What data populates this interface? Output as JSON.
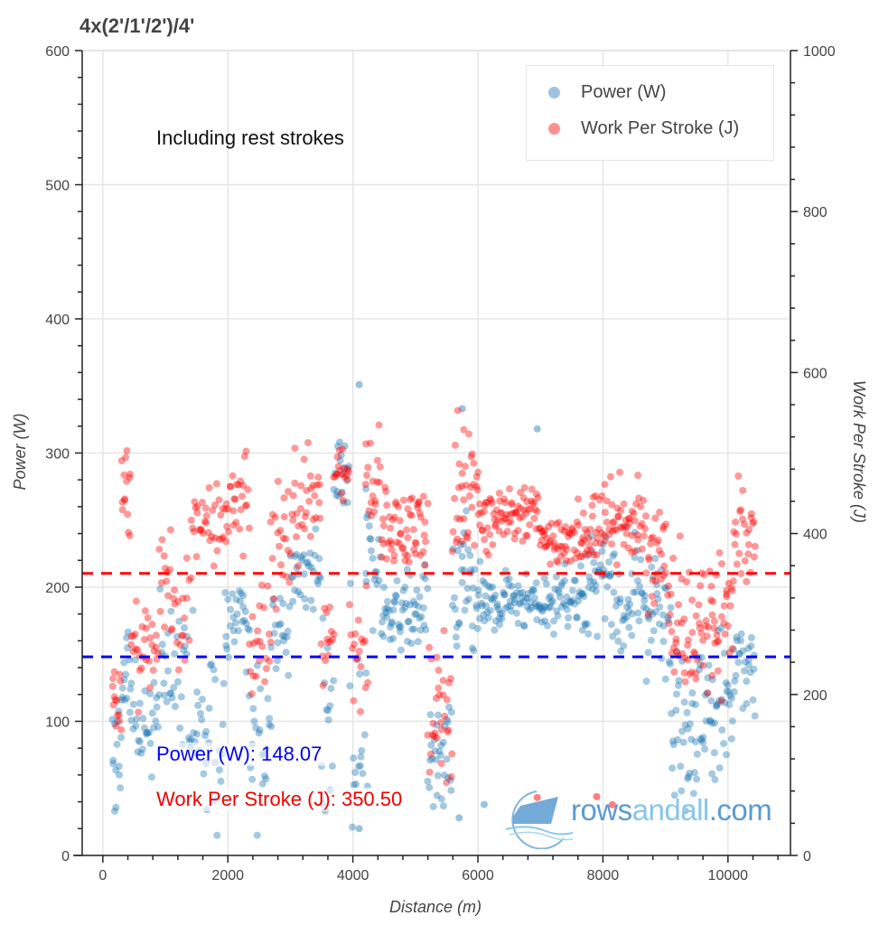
{
  "title": "4x(2'/1'/2')/4'",
  "note": "Including rest strokes",
  "legend": {
    "items": [
      {
        "label": "Power (W)",
        "color": "#7fb0d8"
      },
      {
        "label": "Work Per Stroke (J)",
        "color": "#ff8080"
      }
    ]
  },
  "stats": {
    "power_label": "Power (W): 148.07",
    "work_label": "Work Per Stroke (J): 350.50"
  },
  "watermark": {
    "part1": "rows",
    "part2": "andall",
    "part3": ".com"
  },
  "colors": {
    "power": "#1f77b4",
    "work": "#ff0000",
    "power_mean_line": "#0000ff",
    "work_mean_line": "#ff0000",
    "grid": "#e5e5e5",
    "axis": "#222222"
  },
  "chart_data": {
    "type": "scatter",
    "title": "4x(2'/1'/2')/4'",
    "subtitle": "Including rest strokes",
    "xlabel": "Distance (m)",
    "ylabel": "Power (W)",
    "y2label": "Work Per Stroke (J)",
    "xlim": [
      -330,
      11000
    ],
    "ylim": [
      0,
      600
    ],
    "y2lim": [
      0,
      1000
    ],
    "xticks": [
      0,
      2000,
      4000,
      6000,
      8000,
      10000
    ],
    "yticks": [
      0,
      100,
      200,
      300,
      400,
      500,
      600
    ],
    "y2ticks": [
      0,
      200,
      400,
      600,
      800,
      1000
    ],
    "grid": true,
    "legend_position": "upper right",
    "hlines": [
      {
        "series": "Power (W)",
        "axis": "left",
        "value": 148.07,
        "style": "dashed",
        "color": "#0000ff"
      },
      {
        "series": "Work Per Stroke (J)",
        "axis": "right",
        "value": 350.5,
        "style": "dashed",
        "color": "#ff0000"
      }
    ],
    "series": [
      {
        "name": "Power (W)",
        "axis": "left",
        "color": "#1f77b4"
      },
      {
        "name": "Work Per Stroke (J)",
        "axis": "right",
        "color": "#ff0000"
      }
    ],
    "segments": [
      {
        "x0": 150,
        "x1": 300,
        "power": 75,
        "work": 180,
        "spread_p": 25,
        "spread_w": 40,
        "n": 14
      },
      {
        "x0": 300,
        "x1": 450,
        "power": 140,
        "work": 440,
        "spread_p": 15,
        "spread_w": 40,
        "n": 14
      },
      {
        "x0": 450,
        "x1": 900,
        "power": 100,
        "work": 260,
        "spread_p": 20,
        "spread_w": 35,
        "n": 30
      },
      {
        "x0": 900,
        "x1": 1400,
        "power": 140,
        "work": 320,
        "spread_p": 25,
        "spread_w": 40,
        "n": 30
      },
      {
        "x0": 1400,
        "x1": 1950,
        "power": 100,
        "work": 400,
        "spread_p": 40,
        "spread_w": 30,
        "n": 34
      },
      {
        "x0": 1950,
        "x1": 2350,
        "power": 175,
        "work": 440,
        "spread_p": 18,
        "spread_w": 30,
        "n": 28
      },
      {
        "x0": 2350,
        "x1": 2700,
        "power": 90,
        "work": 260,
        "spread_p": 30,
        "spread_w": 45,
        "n": 22
      },
      {
        "x0": 2700,
        "x1": 3000,
        "power": 170,
        "work": 380,
        "spread_p": 18,
        "spread_w": 40,
        "n": 20
      },
      {
        "x0": 3000,
        "x1": 3500,
        "power": 210,
        "work": 440,
        "spread_p": 15,
        "spread_w": 35,
        "n": 32
      },
      {
        "x0": 3500,
        "x1": 3700,
        "power": 100,
        "work": 260,
        "spread_p": 40,
        "spread_w": 40,
        "n": 14
      },
      {
        "x0": 3700,
        "x1": 3950,
        "power": 280,
        "work": 470,
        "spread_p": 12,
        "spread_w": 20,
        "n": 18
      },
      {
        "x0": 3950,
        "x1": 4250,
        "power": 80,
        "work": 250,
        "spread_p": 50,
        "spread_w": 60,
        "n": 18
      },
      {
        "x0": 4200,
        "x1": 4450,
        "power": 220,
        "work": 470,
        "spread_p": 25,
        "spread_w": 40,
        "n": 18
      },
      {
        "x0": 4450,
        "x1": 5200,
        "power": 180,
        "work": 410,
        "spread_p": 15,
        "spread_w": 25,
        "n": 60
      },
      {
        "x0": 5200,
        "x1": 5600,
        "power": 75,
        "work": 180,
        "spread_p": 25,
        "spread_w": 50,
        "n": 30
      },
      {
        "x0": 5600,
        "x1": 6000,
        "power": 205,
        "work": 450,
        "spread_p": 25,
        "spread_w": 35,
        "n": 34
      },
      {
        "x0": 6000,
        "x1": 7000,
        "power": 192,
        "work": 420,
        "spread_p": 12,
        "spread_w": 20,
        "n": 80
      },
      {
        "x0": 7000,
        "x1": 7600,
        "power": 190,
        "work": 390,
        "spread_p": 12,
        "spread_w": 18,
        "n": 46
      },
      {
        "x0": 7600,
        "x1": 8100,
        "power": 200,
        "work": 410,
        "spread_p": 18,
        "spread_w": 25,
        "n": 40
      },
      {
        "x0": 8100,
        "x1": 8700,
        "power": 195,
        "work": 410,
        "spread_p": 18,
        "spread_w": 30,
        "n": 46
      },
      {
        "x0": 8700,
        "x1": 9100,
        "power": 180,
        "work": 370,
        "spread_p": 20,
        "spread_w": 35,
        "n": 30
      },
      {
        "x0": 9100,
        "x1": 9600,
        "power": 100,
        "work": 280,
        "spread_p": 30,
        "spread_w": 40,
        "n": 40
      },
      {
        "x0": 9600,
        "x1": 10100,
        "power": 110,
        "work": 300,
        "spread_p": 30,
        "spread_w": 50,
        "n": 40
      },
      {
        "x0": 10100,
        "x1": 10450,
        "power": 140,
        "work": 380,
        "spread_p": 20,
        "spread_w": 30,
        "n": 26
      }
    ],
    "sparse_outliers": [
      {
        "x": 4100,
        "power": 351
      },
      {
        "x": 5750,
        "power": 333
      },
      {
        "x": 6950,
        "power": 318
      },
      {
        "x": 4100,
        "power": 20
      },
      {
        "x": 5700,
        "power": 28
      },
      {
        "x": 6100,
        "power": 38
      },
      {
        "x": 8150,
        "work": 63
      },
      {
        "x": 6950,
        "work": 72
      },
      {
        "x": 7900,
        "work": 73
      }
    ]
  }
}
